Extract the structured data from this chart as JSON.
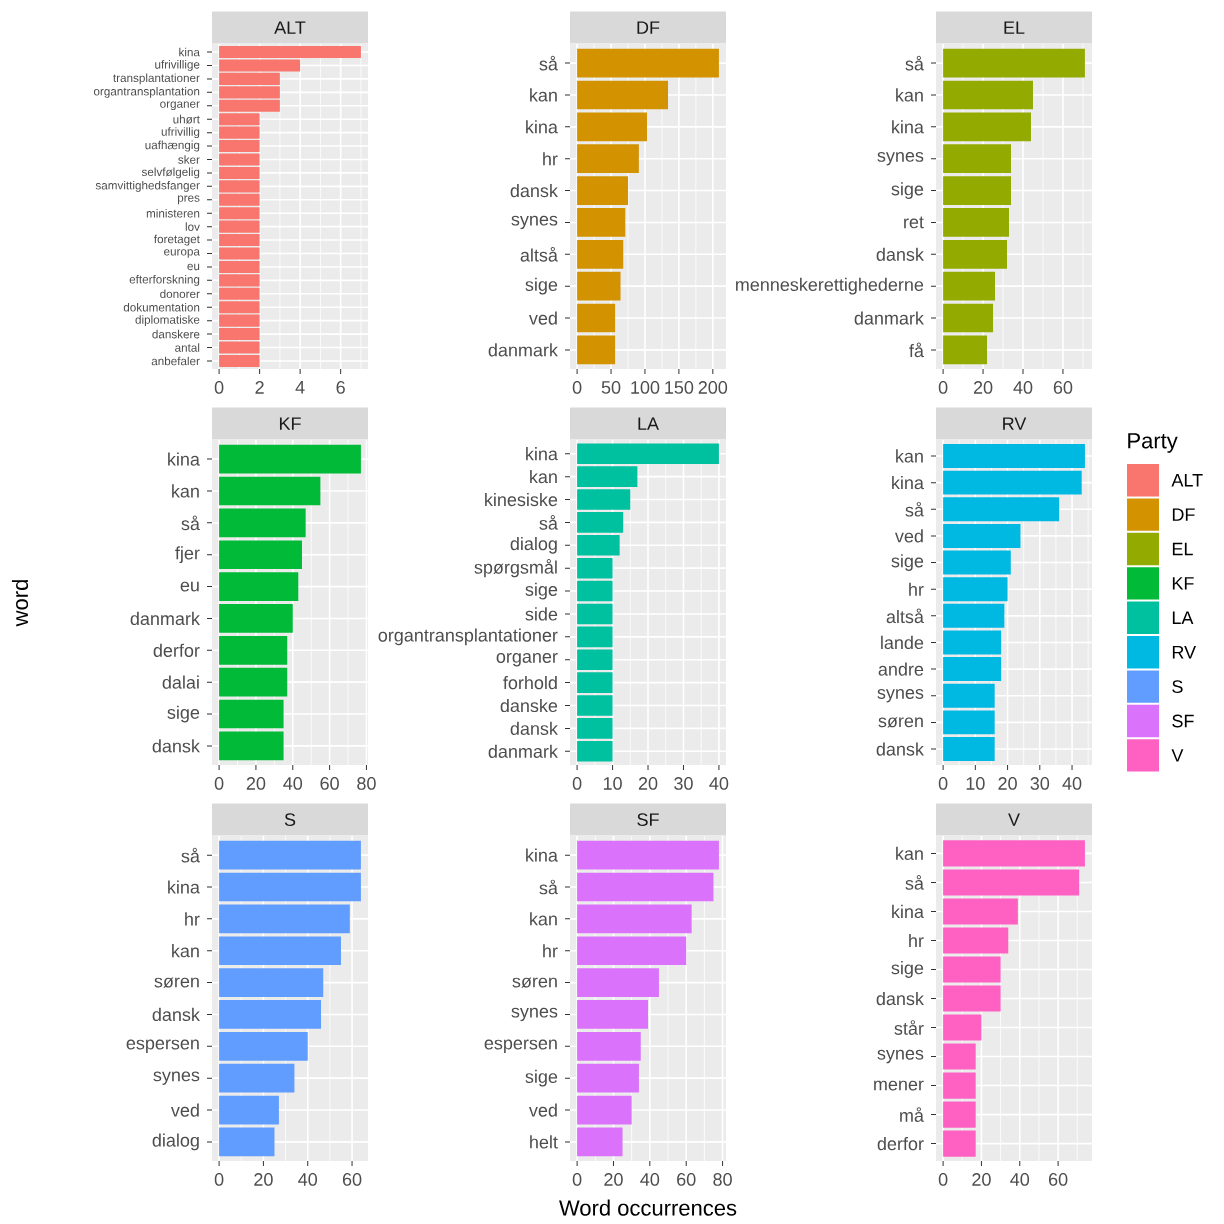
{
  "chart_data": [
    {
      "type": "bar",
      "orientation": "horizontal",
      "title": "ALT",
      "categories": [
        "kina",
        "ufrivillige",
        "transplantationer",
        "organtransplantation",
        "organer",
        "uhørt",
        "ufrivillig",
        "uafhængig",
        "sker",
        "selvfølgelig",
        "samvittighedsfanger",
        "pres",
        "ministeren",
        "lov",
        "foretaget",
        "europa",
        "eu",
        "efterforskning",
        "donorer",
        "dokumentation",
        "diplomatiske",
        "danskere",
        "antal",
        "anbefaler"
      ],
      "series": [
        {
          "name": "ALT",
          "color": "#f8766d",
          "values": [
            7,
            4,
            3,
            3,
            3,
            2,
            2,
            2,
            2,
            2,
            2,
            2,
            2,
            2,
            2,
            2,
            2,
            2,
            2,
            2,
            2,
            2,
            2,
            2
          ]
        }
      ],
      "xlim": [
        -0.35,
        7.35
      ],
      "xticks": [
        0,
        2,
        4,
        6
      ],
      "grid": true,
      "legend": "right"
    },
    {
      "type": "bar",
      "orientation": "horizontal",
      "title": "DF",
      "categories": [
        "så",
        "kan",
        "kina",
        "hr",
        "dansk",
        "synes",
        "altså",
        "sige",
        "ved",
        "danmark"
      ],
      "series": [
        {
          "name": "DF",
          "color": "#d39200",
          "values": [
            209,
            134,
            103,
            91,
            75,
            71,
            68,
            64,
            56,
            56
          ]
        }
      ],
      "xlim": [
        -10.45,
        219.45
      ],
      "xticks": [
        0,
        50,
        100,
        150,
        200
      ],
      "grid": true,
      "legend": "right"
    },
    {
      "type": "bar",
      "orientation": "horizontal",
      "title": "EL",
      "categories": [
        "så",
        "kan",
        "kina",
        "synes",
        "sige",
        "ret",
        "dansk",
        "menneskerettighederne",
        "danmark",
        "få"
      ],
      "series": [
        {
          "name": "EL",
          "color": "#93aa00",
          "values": [
            71,
            45,
            44,
            34,
            34,
            33,
            32,
            26,
            25,
            22
          ]
        }
      ],
      "xlim": [
        -3.55,
        74.55
      ],
      "xticks": [
        0,
        20,
        40,
        60
      ],
      "grid": true,
      "legend": "right"
    },
    {
      "type": "bar",
      "orientation": "horizontal",
      "title": "KF",
      "ylabel": "word",
      "categories": [
        "kina",
        "kan",
        "så",
        "fjer",
        "eu",
        "danmark",
        "derfor",
        "dalai",
        "sige",
        "dansk"
      ],
      "series": [
        {
          "name": "KF",
          "color": "#00ba38",
          "values": [
            77,
            55,
            47,
            45,
            43,
            40,
            37,
            37,
            35,
            35
          ]
        }
      ],
      "xlim": [
        -3.85,
        80.85
      ],
      "xticks": [
        0,
        20,
        40,
        60,
        80
      ],
      "grid": true,
      "legend": "right"
    },
    {
      "type": "bar",
      "orientation": "horizontal",
      "title": "LA",
      "categories": [
        "kina",
        "kan",
        "kinesiske",
        "så",
        "dialog",
        "spørgsmål",
        "sige",
        "side",
        "organtransplantationer",
        "organer",
        "forhold",
        "danske",
        "dansk",
        "danmark"
      ],
      "series": [
        {
          "name": "LA",
          "color": "#00c19f",
          "values": [
            40,
            17,
            15,
            13,
            12,
            10,
            10,
            10,
            10,
            10,
            10,
            10,
            10,
            10
          ]
        }
      ],
      "xlim": [
        -2,
        42
      ],
      "xticks": [
        0,
        10,
        20,
        30,
        40
      ],
      "grid": true,
      "legend": "right"
    },
    {
      "type": "bar",
      "orientation": "horizontal",
      "title": "RV",
      "legend_title": "Party",
      "categories": [
        "kan",
        "kina",
        "så",
        "ved",
        "sige",
        "hr",
        "altså",
        "lande",
        "andre",
        "synes",
        "søren",
        "dansk"
      ],
      "series": [
        {
          "name": "RV",
          "color": "#00b9e3",
          "values": [
            44,
            43,
            36,
            24,
            21,
            20,
            19,
            18,
            18,
            16,
            16,
            16
          ]
        }
      ],
      "xlim": [
        -2.2,
        46.2
      ],
      "xticks": [
        0,
        10,
        20,
        30,
        40
      ],
      "grid": true,
      "legend": "right"
    },
    {
      "type": "bar",
      "orientation": "horizontal",
      "title": "S",
      "categories": [
        "så",
        "kina",
        "hr",
        "kan",
        "søren",
        "dansk",
        "espersen",
        "synes",
        "ved",
        "dialog"
      ],
      "series": [
        {
          "name": "S",
          "color": "#619cff",
          "values": [
            64,
            64,
            59,
            55,
            47,
            46,
            40,
            34,
            27,
            25
          ]
        }
      ],
      "xlim": [
        -3.2,
        67.2
      ],
      "xticks": [
        0,
        20,
        40,
        60
      ],
      "grid": true,
      "legend": "right"
    },
    {
      "type": "bar",
      "orientation": "horizontal",
      "title": "SF",
      "xlabel": "Word occurrences",
      "categories": [
        "kina",
        "så",
        "kan",
        "hr",
        "søren",
        "synes",
        "espersen",
        "sige",
        "ved",
        "helt"
      ],
      "series": [
        {
          "name": "SF",
          "color": "#db72fb",
          "values": [
            78,
            75,
            63,
            60,
            45,
            39,
            35,
            34,
            30,
            25
          ]
        }
      ],
      "xlim": [
        -3.9,
        81.9
      ],
      "xticks": [
        0,
        20,
        40,
        60,
        80
      ],
      "grid": true,
      "legend": "right"
    },
    {
      "type": "bar",
      "orientation": "horizontal",
      "title": "V",
      "categories": [
        "kan",
        "så",
        "kina",
        "hr",
        "sige",
        "dansk",
        "står",
        "synes",
        "mener",
        "må",
        "derfor"
      ],
      "series": [
        {
          "name": "V",
          "color": "#ff61c3",
          "values": [
            74,
            71,
            39,
            34,
            30,
            30,
            20,
            17,
            17,
            17,
            17
          ]
        }
      ],
      "xlim": [
        -3.7,
        77.7
      ],
      "xticks": [
        0,
        20,
        40,
        60
      ],
      "grid": true,
      "legend": "right"
    }
  ]
}
